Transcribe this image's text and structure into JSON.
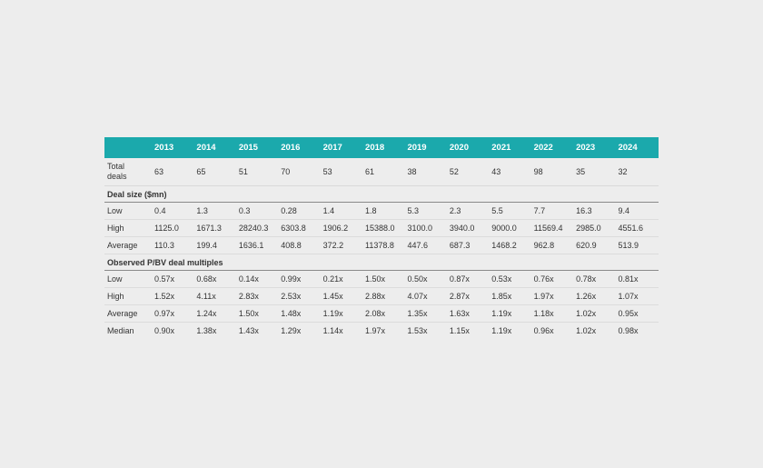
{
  "table": {
    "years": [
      "2013",
      "2014",
      "2015",
      "2016",
      "2017",
      "2018",
      "2019",
      "2020",
      "2021",
      "2022",
      "2023",
      "2024"
    ],
    "total_deals": {
      "label_line1": "Total",
      "label_line2": "deals",
      "values": [
        "63",
        "65",
        "51",
        "70",
        "53",
        "61",
        "38",
        "52",
        "43",
        "98",
        "35",
        "32"
      ]
    },
    "deal_size": {
      "title": "Deal size ($mn)",
      "rows": [
        {
          "label": "Low",
          "values": [
            "0.4",
            "1.3",
            "0.3",
            "0.28",
            "1.4",
            "1.8",
            "5.3",
            "2.3",
            "5.5",
            "7.7",
            "16.3",
            "9.4"
          ]
        },
        {
          "label": "High",
          "values": [
            "1125.0",
            "1671.3",
            "28240.3",
            "6303.8",
            "1906.2",
            "15388.0",
            "3100.0",
            "3940.0",
            "9000.0",
            "11569.4",
            "2985.0",
            "4551.6"
          ]
        },
        {
          "label": "Average",
          "values": [
            "110.3",
            "199.4",
            "1636.1",
            "408.8",
            "372.2",
            "11378.8",
            "447.6",
            "687.3",
            "1468.2",
            "962.8",
            "620.9",
            "513.9"
          ]
        }
      ]
    },
    "multiples": {
      "title": "Observed P/BV deal multiples",
      "rows": [
        {
          "label": "Low",
          "values": [
            "0.57x",
            "0.68x",
            "0.14x",
            "0.99x",
            "0.21x",
            "1.50x",
            "0.50x",
            "0.87x",
            "0.53x",
            "0.76x",
            "0.78x",
            "0.81x"
          ]
        },
        {
          "label": "High",
          "values": [
            "1.52x",
            "4.11x",
            "2.83x",
            "2.53x",
            "1.45x",
            "2.88x",
            "4.07x",
            "2.87x",
            "1.85x",
            "1.97x",
            "1.26x",
            "1.07x"
          ]
        },
        {
          "label": "Average",
          "values": [
            "0.97x",
            "1.24x",
            "1.50x",
            "1.48x",
            "1.19x",
            "2.08x",
            "1.35x",
            "1.63x",
            "1.19x",
            "1.18x",
            "1.02x",
            "0.95x"
          ]
        },
        {
          "label": "Median",
          "values": [
            "0.90x",
            "1.38x",
            "1.43x",
            "1.29x",
            "1.14x",
            "1.97x",
            "1.53x",
            "1.15x",
            "1.19x",
            "0.96x",
            "1.02x",
            "0.98x"
          ]
        }
      ]
    },
    "colors": {
      "header_bg": "#1ba9ac",
      "page_bg": "#ededed"
    }
  }
}
